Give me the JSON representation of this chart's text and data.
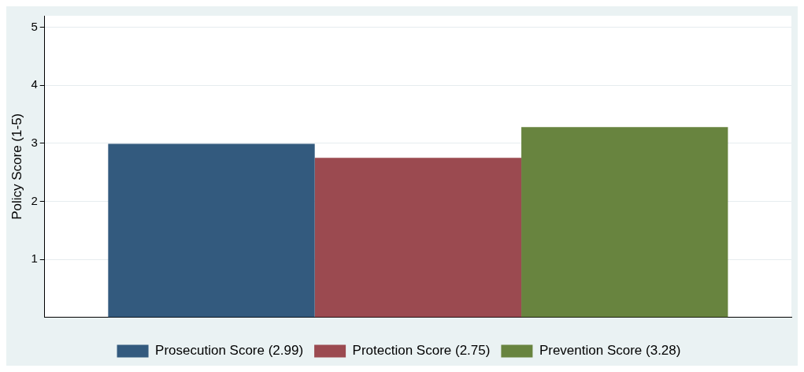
{
  "chart_data": {
    "type": "bar",
    "ylabel": "Policy Score (1-5)",
    "categories": [
      null
    ],
    "series": [
      {
        "name": "Prosecution Score (2.99)",
        "color": "#335a7e",
        "values": [
          2.99
        ]
      },
      {
        "name": "Protection Score (2.75)",
        "color": "#9b4a50",
        "values": [
          2.75
        ]
      },
      {
        "name": "Prevention Score (3.28)",
        "color": "#68843f",
        "values": [
          3.28
        ]
      }
    ],
    "ylim": [
      0,
      5.2
    ],
    "yticks": [
      1,
      2,
      3,
      4,
      5
    ],
    "grid": "y",
    "legend": "bottom"
  }
}
